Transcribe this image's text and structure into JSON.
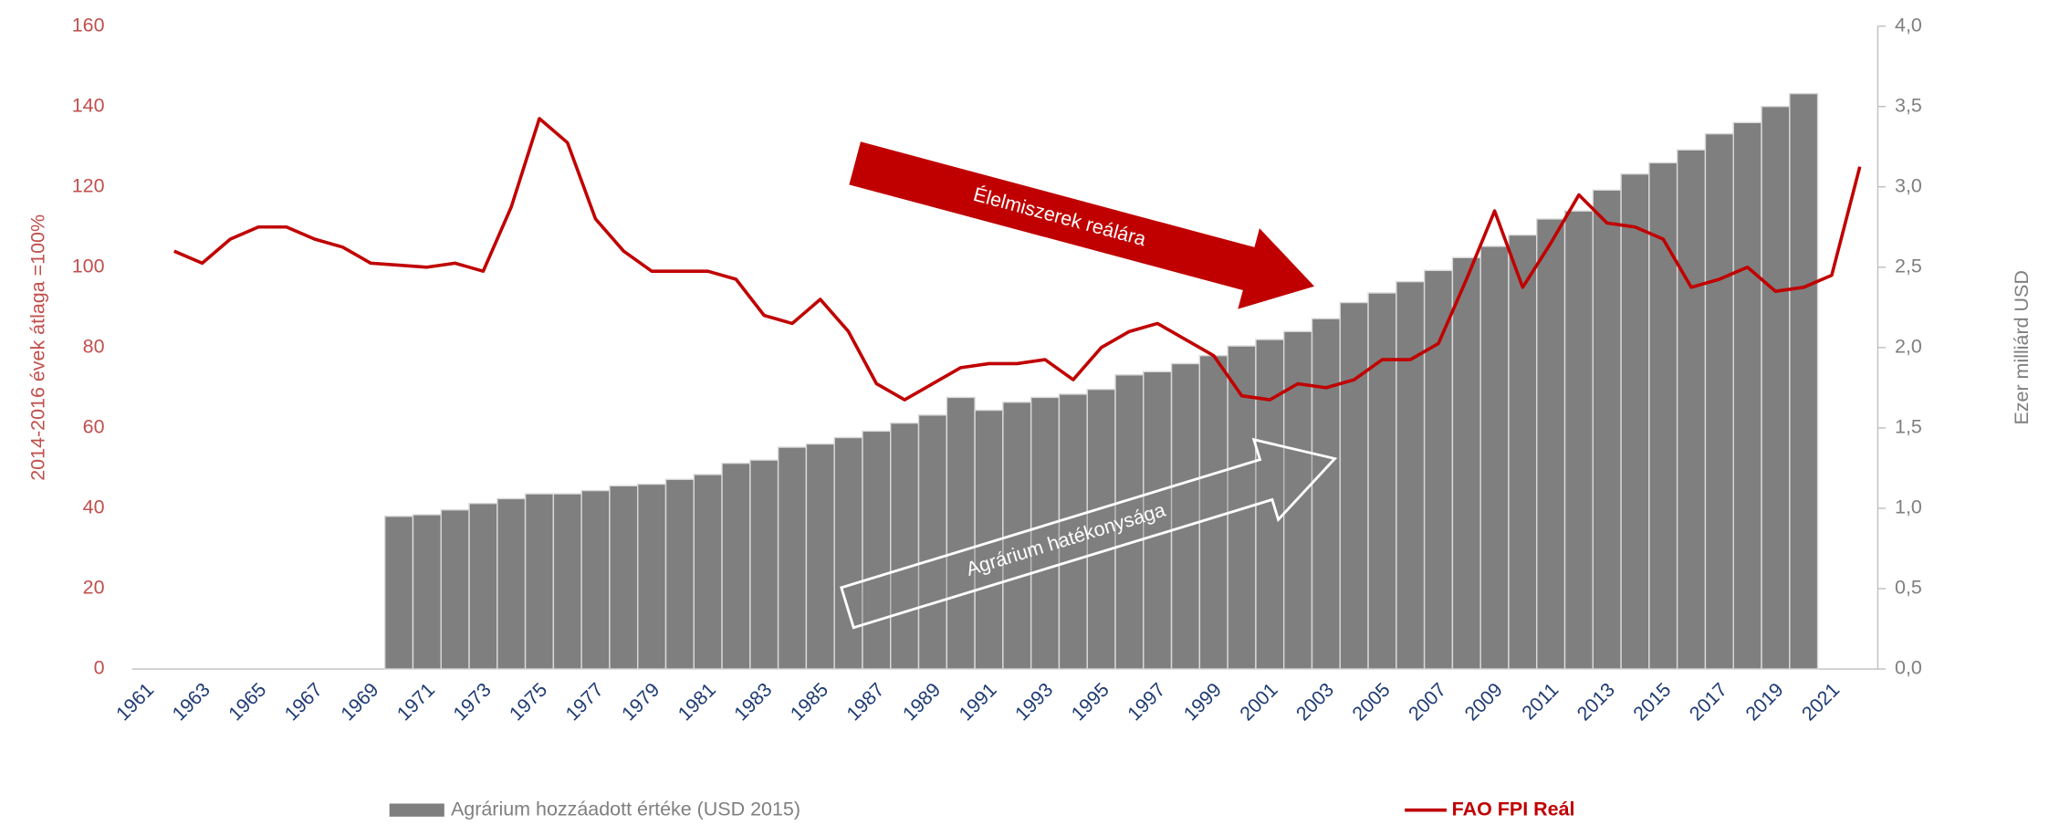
{
  "chart_data": {
    "type": "bar",
    "ylabel": "2014-2016 évek átlaga =100%",
    "y2label": "Ezer milliárd USD",
    "categories": [
      "1961",
      null,
      "1963",
      null,
      "1965",
      null,
      "1967",
      null,
      "1969",
      null,
      "1971",
      null,
      "1973",
      null,
      "1975",
      null,
      "1977",
      null,
      "1979",
      null,
      "1981",
      null,
      "1983",
      null,
      "1985",
      null,
      "1987",
      null,
      "1989",
      null,
      "1991",
      null,
      "1993",
      null,
      "1995",
      null,
      "1997",
      null,
      "1999",
      null,
      "2001",
      null,
      "2003",
      null,
      "2005",
      null,
      "2007",
      null,
      "2009",
      null,
      "2011",
      null,
      "2013",
      null,
      "2015",
      null,
      "2017",
      null,
      "2019",
      null,
      "2021",
      null
    ],
    "series": [
      {
        "name": "Agrárium hozzáadott értéke (USD 2015)",
        "type": "bar",
        "axis": "y2",
        "color": "#7f7f7f",
        "values": [
          null,
          null,
          null,
          null,
          null,
          null,
          null,
          null,
          null,
          0.95,
          0.96,
          0.99,
          1.03,
          1.06,
          1.09,
          1.09,
          1.11,
          1.14,
          1.15,
          1.18,
          1.21,
          1.28,
          1.3,
          1.38,
          1.4,
          1.44,
          1.48,
          1.53,
          1.58,
          1.69,
          1.61,
          1.66,
          1.69,
          1.71,
          1.74,
          1.83,
          1.85,
          1.9,
          1.95,
          2.01,
          2.05,
          2.1,
          2.18,
          2.28,
          2.34,
          2.41,
          2.48,
          2.56,
          2.63,
          2.7,
          2.8,
          2.85,
          2.98,
          3.08,
          3.15,
          3.23,
          3.33,
          3.4,
          3.5,
          3.58,
          null,
          null
        ]
      },
      {
        "name": "FAO FPI Reál",
        "type": "line",
        "axis": "y",
        "color": "#c00000",
        "values": [
          null,
          104,
          101,
          107,
          110,
          110,
          107,
          105,
          101,
          100.5,
          100,
          101,
          99,
          115,
          137,
          131,
          112,
          104,
          99,
          99,
          99,
          97,
          88,
          86,
          92,
          84,
          71,
          67,
          71,
          75,
          76,
          76,
          77,
          72,
          80,
          84,
          86,
          82,
          78,
          68,
          67,
          71,
          70,
          72,
          77,
          77,
          81,
          97,
          114,
          95,
          106,
          118,
          111,
          110,
          107,
          95,
          97,
          100,
          94,
          95,
          98,
          125
        ]
      }
    ],
    "ylim": [
      0,
      160
    ],
    "yticks": [
      0,
      20,
      40,
      60,
      80,
      100,
      120,
      140,
      160
    ],
    "y2lim": [
      0,
      4
    ],
    "y2ticks": [
      {
        "value": 0,
        "label": "0,0"
      },
      {
        "value": 0.5,
        "label": "0,5"
      },
      {
        "value": 1,
        "label": "1,0"
      },
      {
        "value": 1.5,
        "label": "1,5"
      },
      {
        "value": 2,
        "label": "2,0"
      },
      {
        "value": 2.5,
        "label": "2,5"
      },
      {
        "value": 3,
        "label": "3,0"
      },
      {
        "value": 3.5,
        "label": "3,5"
      },
      {
        "value": 4,
        "label": "4,0"
      }
    ],
    "annotations": [
      {
        "text": "Élelmiszerek reálára"
      },
      {
        "text": "Agrárium hatékonysága"
      }
    ],
    "legend": "bottom"
  }
}
